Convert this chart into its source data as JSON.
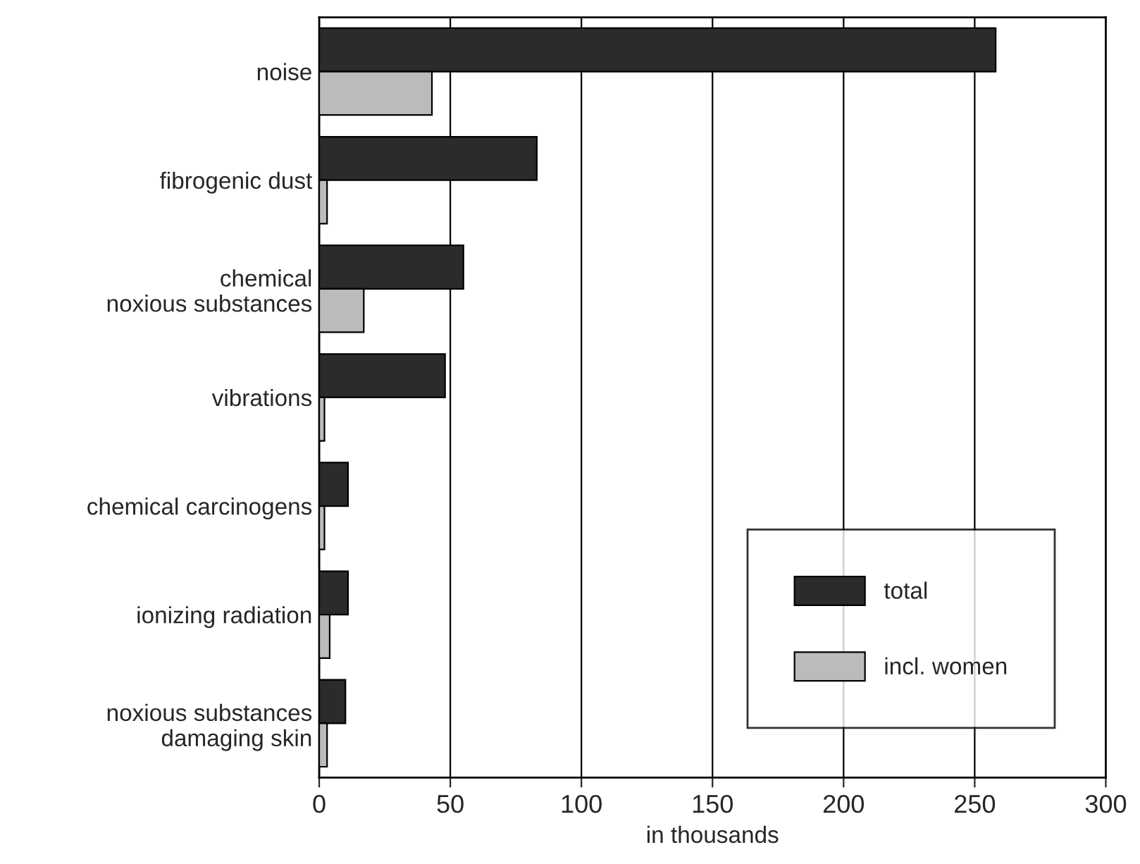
{
  "chart_data": {
    "type": "bar",
    "orientation": "horizontal",
    "xlabel": "in thousands",
    "categories": [
      "noise",
      "fibrogenic dust",
      "chemical\nnoxious substances",
      "vibrations",
      "chemical carcinogens",
      "ionizing radiation",
      "noxious substances\ndamaging skin"
    ],
    "series": [
      {
        "name": "total",
        "color": "#2b2b2b",
        "values": [
          258,
          83,
          55,
          48,
          11,
          11,
          10
        ]
      },
      {
        "name": "incl. women",
        "color": "#bbbbbb",
        "values": [
          43,
          3,
          17,
          2,
          2,
          4,
          3
        ]
      }
    ],
    "xlim": [
      0,
      300
    ],
    "xticks": [
      0,
      50,
      100,
      150,
      200,
      250,
      300
    ],
    "grid": "x",
    "legend": "bottom right"
  }
}
